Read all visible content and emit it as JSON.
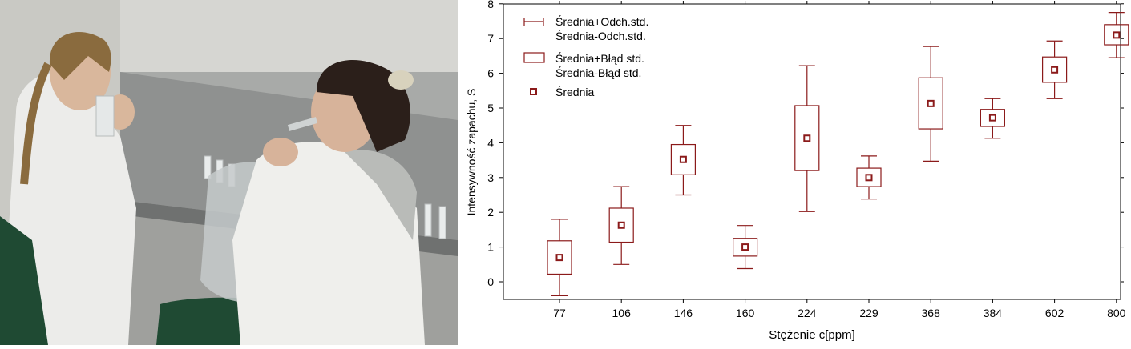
{
  "chart_data": {
    "type": "box",
    "categories": [
      "77",
      "106",
      "146",
      "160",
      "224",
      "229",
      "368",
      "384",
      "602",
      "800"
    ],
    "series": [
      {
        "name": "Średnia",
        "values": [
          0.7,
          1.63,
          3.52,
          1.0,
          4.13,
          3.0,
          5.13,
          4.72,
          6.1,
          7.1
        ]
      },
      {
        "name": "Średnia+Błąd std.",
        "values": [
          1.18,
          2.12,
          3.95,
          1.25,
          5.07,
          3.27,
          5.87,
          4.96,
          6.47,
          7.4
        ]
      },
      {
        "name": "Średnia-Błąd std.",
        "values": [
          0.22,
          1.14,
          3.08,
          0.74,
          3.2,
          2.74,
          4.4,
          4.47,
          5.74,
          6.82
        ]
      },
      {
        "name": "Średnia+Odch.std.",
        "values": [
          1.8,
          2.74,
          4.5,
          1.62,
          6.22,
          3.62,
          6.77,
          5.27,
          6.93,
          7.75
        ]
      },
      {
        "name": "Średnia-Odch.std.",
        "values": [
          -0.4,
          0.5,
          2.5,
          0.38,
          2.02,
          2.38,
          3.47,
          4.13,
          5.27,
          6.45
        ]
      }
    ],
    "xlabel": "Stężenie c[ppm]",
    "ylabel": "Intensywność zapachu, S",
    "yticks": [
      "0",
      "1",
      "2",
      "3",
      "4",
      "5",
      "6",
      "7",
      "8"
    ],
    "ylim": [
      -0.5,
      8
    ],
    "legend": {
      "position": "top-left",
      "whisker_label_1": "Średnia+Odch.std.",
      "whisker_label_2": "Średnia-Odch.std.",
      "box_label_1": "Średnia+Błąd std.",
      "box_label_2": "Średnia-Błąd std.",
      "point_label": "Średnia"
    },
    "grid": false,
    "colors": {
      "marks": "#8b1a1a",
      "axis": "#000000"
    }
  },
  "photo": {
    "icon": "photo-two-women-sniffing-samples-icon",
    "colors": {
      "wall": "#d9d9d6",
      "coat": "#ededea",
      "chair": "#1f4a33",
      "table": "#9a9a98"
    }
  }
}
